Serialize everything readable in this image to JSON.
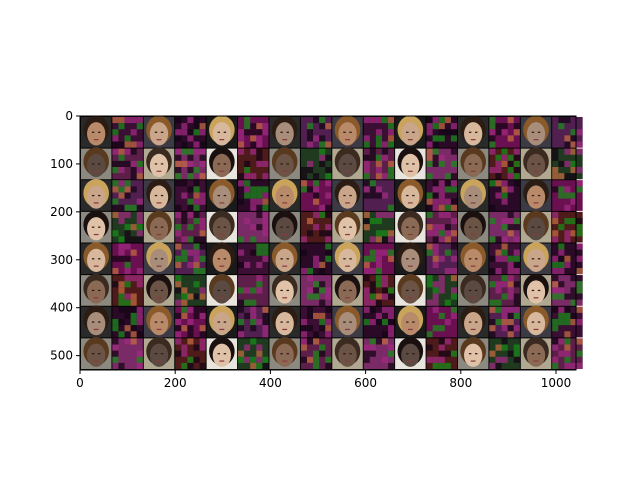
{
  "chart_data": {
    "type": "heatmap",
    "description_kind": "image-grid",
    "title": "",
    "xlabel": "",
    "ylabel": "",
    "xlim": [
      0,
      1042
    ],
    "ylim": [
      530,
      0
    ],
    "x_ticks": [
      0,
      200,
      400,
      600,
      800,
      1000
    ],
    "y_ticks": [
      0,
      100,
      200,
      300,
      400,
      500
    ],
    "grid": false,
    "rows": 8,
    "cols": 16,
    "tile_size": 64,
    "tile_gap": 2,
    "column_content": [
      "face",
      "noise",
      "face",
      "noise",
      "face",
      "noise",
      "face",
      "noise",
      "face",
      "noise",
      "face",
      "noise",
      "face",
      "noise",
      "face",
      "noise"
    ],
    "face_palette": [
      "#b98a6a",
      "#8a6a55",
      "#c9a58a",
      "#6b5446",
      "#d8b89c",
      "#5a4a42",
      "#a78d7a",
      "#e0c2a8"
    ],
    "noise_palette": [
      "#5e1e4a",
      "#3a0f33",
      "#7a2a66",
      "#2b0a28",
      "#4e1a1a",
      "#6a1050",
      "#1f3a1f",
      "#512050"
    ],
    "background_color": "#000000"
  }
}
